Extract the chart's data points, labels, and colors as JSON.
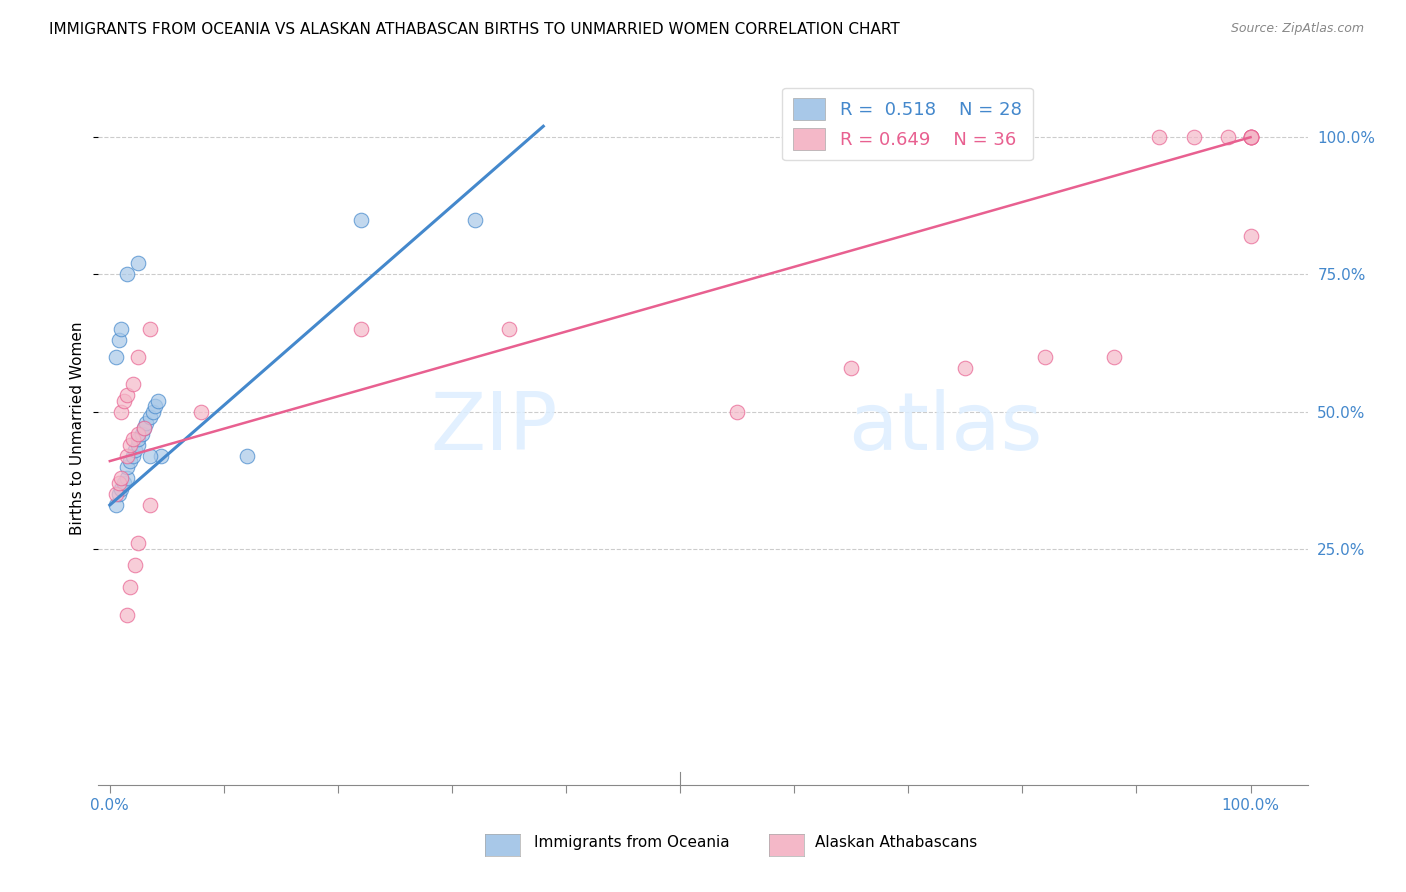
{
  "title": "IMMIGRANTS FROM OCEANIA VS ALASKAN ATHABASCAN BIRTHS TO UNMARRIED WOMEN CORRELATION CHART",
  "source": "Source: ZipAtlas.com",
  "ylabel": "Births to Unmarried Women",
  "ytick_labels": [
    "25.0%",
    "50.0%",
    "75.0%",
    "100.0%"
  ],
  "ytick_values": [
    0.25,
    0.5,
    0.75,
    1.0
  ],
  "legend_label1": "Immigrants from Oceania",
  "legend_label2": "Alaskan Athabascans",
  "R1": "0.518",
  "N1": "28",
  "R2": "0.649",
  "N2": "36",
  "color_blue": "#a8c8e8",
  "color_pink": "#f4b8c8",
  "color_blue_line": "#4488cc",
  "color_pink_line": "#e86090",
  "background_color": "#ffffff",
  "blue_scatter_x": [
    0.005,
    0.008,
    0.01,
    0.012,
    0.015,
    0.015,
    0.018,
    0.02,
    0.022,
    0.025,
    0.025,
    0.028,
    0.03,
    0.032,
    0.035,
    0.038,
    0.04,
    0.042,
    0.045,
    0.005,
    0.008,
    0.01,
    0.015,
    0.025,
    0.035,
    0.12,
    0.22,
    0.32
  ],
  "blue_scatter_y": [
    0.33,
    0.35,
    0.36,
    0.37,
    0.38,
    0.4,
    0.41,
    0.42,
    0.43,
    0.44,
    0.45,
    0.46,
    0.47,
    0.48,
    0.49,
    0.5,
    0.51,
    0.52,
    0.42,
    0.6,
    0.63,
    0.65,
    0.75,
    0.77,
    0.42,
    0.42,
    0.85,
    0.85
  ],
  "pink_scatter_x": [
    0.005,
    0.008,
    0.01,
    0.015,
    0.018,
    0.02,
    0.025,
    0.03,
    0.01,
    0.012,
    0.015,
    0.02,
    0.025,
    0.035,
    0.015,
    0.018,
    0.022,
    0.025,
    0.035,
    0.08,
    0.22,
    0.35,
    0.55,
    0.65,
    0.75,
    0.82,
    0.88,
    0.92,
    0.95,
    0.98,
    1.0,
    1.0,
    1.0,
    1.0,
    1.0,
    1.0
  ],
  "pink_scatter_y": [
    0.35,
    0.37,
    0.38,
    0.42,
    0.44,
    0.45,
    0.46,
    0.47,
    0.5,
    0.52,
    0.53,
    0.55,
    0.6,
    0.65,
    0.13,
    0.18,
    0.22,
    0.26,
    0.33,
    0.5,
    0.65,
    0.65,
    0.5,
    0.58,
    0.58,
    0.6,
    0.6,
    1.0,
    1.0,
    1.0,
    1.0,
    1.0,
    1.0,
    1.0,
    1.0,
    0.82
  ],
  "blue_line_x": [
    0.0,
    0.38
  ],
  "blue_line_y": [
    0.33,
    1.02
  ],
  "pink_line_x": [
    0.0,
    1.0
  ],
  "pink_line_y": [
    0.41,
    1.0
  ],
  "xlim": [
    -0.01,
    1.05
  ],
  "ylim": [
    -0.18,
    1.12
  ]
}
